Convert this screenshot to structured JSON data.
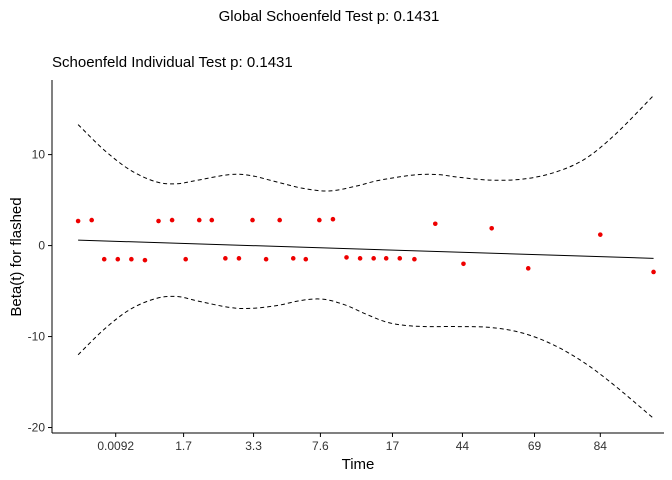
{
  "page_title": "Global Schoenfeld Test p: 0.1431",
  "chart_data": {
    "type": "scatter",
    "title": "Schoenfeld Individual Test p: 0.1431",
    "xlabel": "Time",
    "ylabel": "Beta(t) for flashed",
    "x_tick_labels": [
      "0.0092",
      "1.7",
      "3.3",
      "7.6",
      "17",
      "44",
      "69",
      "84"
    ],
    "x_tick_positions": [
      6.1,
      12.6,
      19.3,
      25.7,
      32.6,
      39.3,
      46.2,
      52.5
    ],
    "x_range": [
      0,
      58.6
    ],
    "y_ticks": [
      -20,
      -10,
      0,
      10
    ],
    "ylim": [
      -20.6,
      18.2
    ],
    "grid": false,
    "colors": {
      "points": "#ee0000",
      "fit": "#000000",
      "band": "#000000",
      "axis": "#000000"
    },
    "points": [
      {
        "x": 2.5,
        "y": 2.7
      },
      {
        "x": 3.8,
        "y": 2.8
      },
      {
        "x": 5.0,
        "y": -1.5
      },
      {
        "x": 6.3,
        "y": -1.5
      },
      {
        "x": 7.6,
        "y": -1.5
      },
      {
        "x": 8.9,
        "y": -1.6
      },
      {
        "x": 10.2,
        "y": 2.7
      },
      {
        "x": 11.5,
        "y": 2.8
      },
      {
        "x": 12.8,
        "y": -1.5
      },
      {
        "x": 14.1,
        "y": 2.8
      },
      {
        "x": 15.3,
        "y": 2.8
      },
      {
        "x": 16.6,
        "y": -1.4
      },
      {
        "x": 17.9,
        "y": -1.4
      },
      {
        "x": 19.2,
        "y": 2.8
      },
      {
        "x": 20.5,
        "y": -1.5
      },
      {
        "x": 21.8,
        "y": 2.8
      },
      {
        "x": 23.1,
        "y": -1.4
      },
      {
        "x": 24.3,
        "y": -1.5
      },
      {
        "x": 25.6,
        "y": 2.8
      },
      {
        "x": 26.9,
        "y": 2.9
      },
      {
        "x": 28.2,
        "y": -1.3
      },
      {
        "x": 29.5,
        "y": -1.4
      },
      {
        "x": 30.8,
        "y": -1.4
      },
      {
        "x": 32.0,
        "y": -1.4
      },
      {
        "x": 33.3,
        "y": -1.4
      },
      {
        "x": 34.7,
        "y": -1.5
      },
      {
        "x": 36.7,
        "y": 2.4
      },
      {
        "x": 39.4,
        "y": -2.0
      },
      {
        "x": 42.1,
        "y": 1.9
      },
      {
        "x": 45.6,
        "y": -2.5
      },
      {
        "x": 52.5,
        "y": 1.2
      },
      {
        "x": 57.6,
        "y": -2.9
      }
    ],
    "fit_line": [
      [
        2.5,
        0.6
      ],
      [
        57.6,
        -1.4
      ]
    ],
    "upper_band": [
      [
        2.5,
        13.3
      ],
      [
        5.0,
        10.5
      ],
      [
        7.5,
        8.3
      ],
      [
        10.0,
        7.0
      ],
      [
        12.0,
        6.8
      ],
      [
        14.0,
        7.2
      ],
      [
        17.0,
        7.8
      ],
      [
        19.0,
        7.7
      ],
      [
        21.5,
        7.0
      ],
      [
        24.0,
        6.3
      ],
      [
        26.5,
        6.0
      ],
      [
        29.0,
        6.5
      ],
      [
        31.0,
        7.1
      ],
      [
        33.0,
        7.5
      ],
      [
        35.0,
        7.8
      ],
      [
        37.0,
        7.8
      ],
      [
        39.0,
        7.5
      ],
      [
        42.0,
        7.2
      ],
      [
        45.0,
        7.3
      ],
      [
        48.0,
        8.0
      ],
      [
        51.0,
        9.5
      ],
      [
        54.0,
        12.3
      ],
      [
        57.6,
        16.5
      ]
    ],
    "lower_band": [
      [
        2.5,
        -12.0
      ],
      [
        5.0,
        -9.2
      ],
      [
        7.5,
        -7.0
      ],
      [
        10.0,
        -5.8
      ],
      [
        12.0,
        -5.6
      ],
      [
        14.0,
        -6.1
      ],
      [
        17.0,
        -6.8
      ],
      [
        19.0,
        -6.9
      ],
      [
        21.5,
        -6.6
      ],
      [
        24.0,
        -6.0
      ],
      [
        26.0,
        -5.9
      ],
      [
        28.0,
        -6.5
      ],
      [
        30.0,
        -7.5
      ],
      [
        32.0,
        -8.4
      ],
      [
        34.0,
        -8.8
      ],
      [
        36.0,
        -8.9
      ],
      [
        39.0,
        -8.9
      ],
      [
        42.0,
        -9.0
      ],
      [
        45.0,
        -9.6
      ],
      [
        48.0,
        -10.9
      ],
      [
        51.0,
        -12.9
      ],
      [
        54.0,
        -15.5
      ],
      [
        57.6,
        -19.0
      ]
    ]
  }
}
